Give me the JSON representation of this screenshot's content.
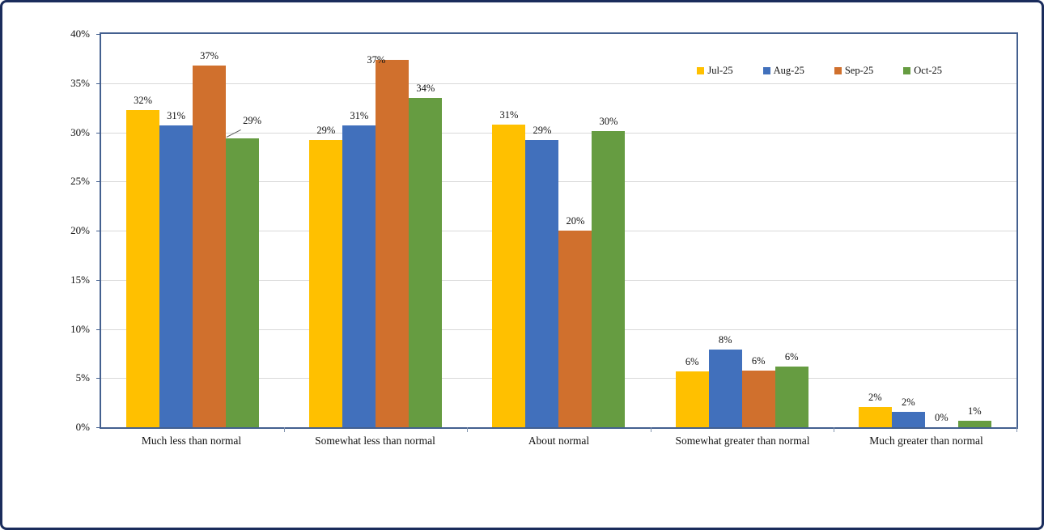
{
  "chart_data": {
    "type": "bar",
    "title": "",
    "xlabel": "",
    "ylabel": "",
    "ylim": [
      0,
      40
    ],
    "grid": true,
    "legend_position": "top-right",
    "y_tick_labels": [
      "0%",
      "5%",
      "10%",
      "15%",
      "20%",
      "25%",
      "30%",
      "35%",
      "40%"
    ],
    "y_tick_values": [
      0,
      5,
      10,
      15,
      20,
      25,
      30,
      35,
      40
    ],
    "categories": [
      "Much less than normal",
      "Somewhat less than normal",
      "About normal",
      "Somewhat greater than normal",
      "Much greater than normal"
    ],
    "series": [
      {
        "name": "Jul-25",
        "color": "#FFC000",
        "values": [
          32.3,
          29.2,
          30.8,
          5.7,
          2.1
        ],
        "labels": [
          "32%",
          "29%",
          "31%",
          "6%",
          "2%"
        ]
      },
      {
        "name": "Aug-25",
        "color": "#4170BC",
        "values": [
          30.7,
          30.7,
          29.2,
          7.9,
          1.6
        ],
        "labels": [
          "31%",
          "31%",
          "29%",
          "8%",
          "2%"
        ]
      },
      {
        "name": "Sep-25",
        "color": "#D0702D",
        "values": [
          36.8,
          37.4,
          20.0,
          5.8,
          0.0
        ],
        "labels": [
          "37%",
          "37%",
          "20%",
          "6%",
          "0%"
        ]
      },
      {
        "name": "Oct-25",
        "color": "#669C41",
        "values": [
          29.4,
          33.5,
          30.1,
          6.2,
          0.7
        ],
        "labels": [
          "29%",
          "34%",
          "30%",
          "6%",
          "1%"
        ]
      }
    ]
  },
  "frame": {
    "outer_border_color": "#1a2c5c",
    "plot_border_color": "#44608f",
    "gridline_color": "#d9d9d9",
    "background_color": "#ffffff"
  }
}
